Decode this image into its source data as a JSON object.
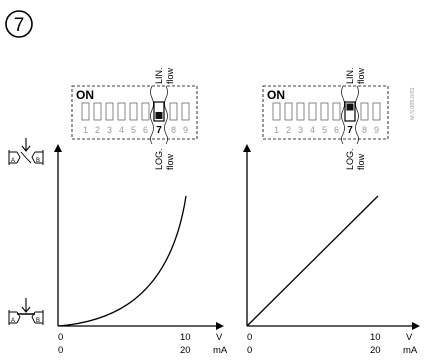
{
  "step_number": "7",
  "doc_code": "M.S.005.0/01",
  "switch_block": {
    "on_label": "ON",
    "switch_numbers": [
      "1",
      "2",
      "3",
      "4",
      "5",
      "6",
      "7",
      "8",
      "9"
    ],
    "top_labels": [
      "LIN.",
      "flow"
    ],
    "bottom_labels": [
      "LOG.",
      "flow"
    ]
  },
  "charts": [
    {
      "id": "logarithmic",
      "switch7_position": "LOG.",
      "x_unit_top": "V",
      "x_unit_bottom": "mA",
      "x_origin_top": "0",
      "x_origin_bottom": "0",
      "x_end_top": "10",
      "x_end_bottom": "20"
    },
    {
      "id": "linear",
      "switch7_position": "LIN.",
      "x_unit_top": "V",
      "x_unit_bottom": "mA",
      "x_origin_top": "0",
      "x_origin_bottom": "0",
      "x_end_top": "10",
      "x_end_bottom": "20"
    }
  ],
  "valve_symbols": {
    "port_a": "A",
    "port_b": "B"
  }
}
